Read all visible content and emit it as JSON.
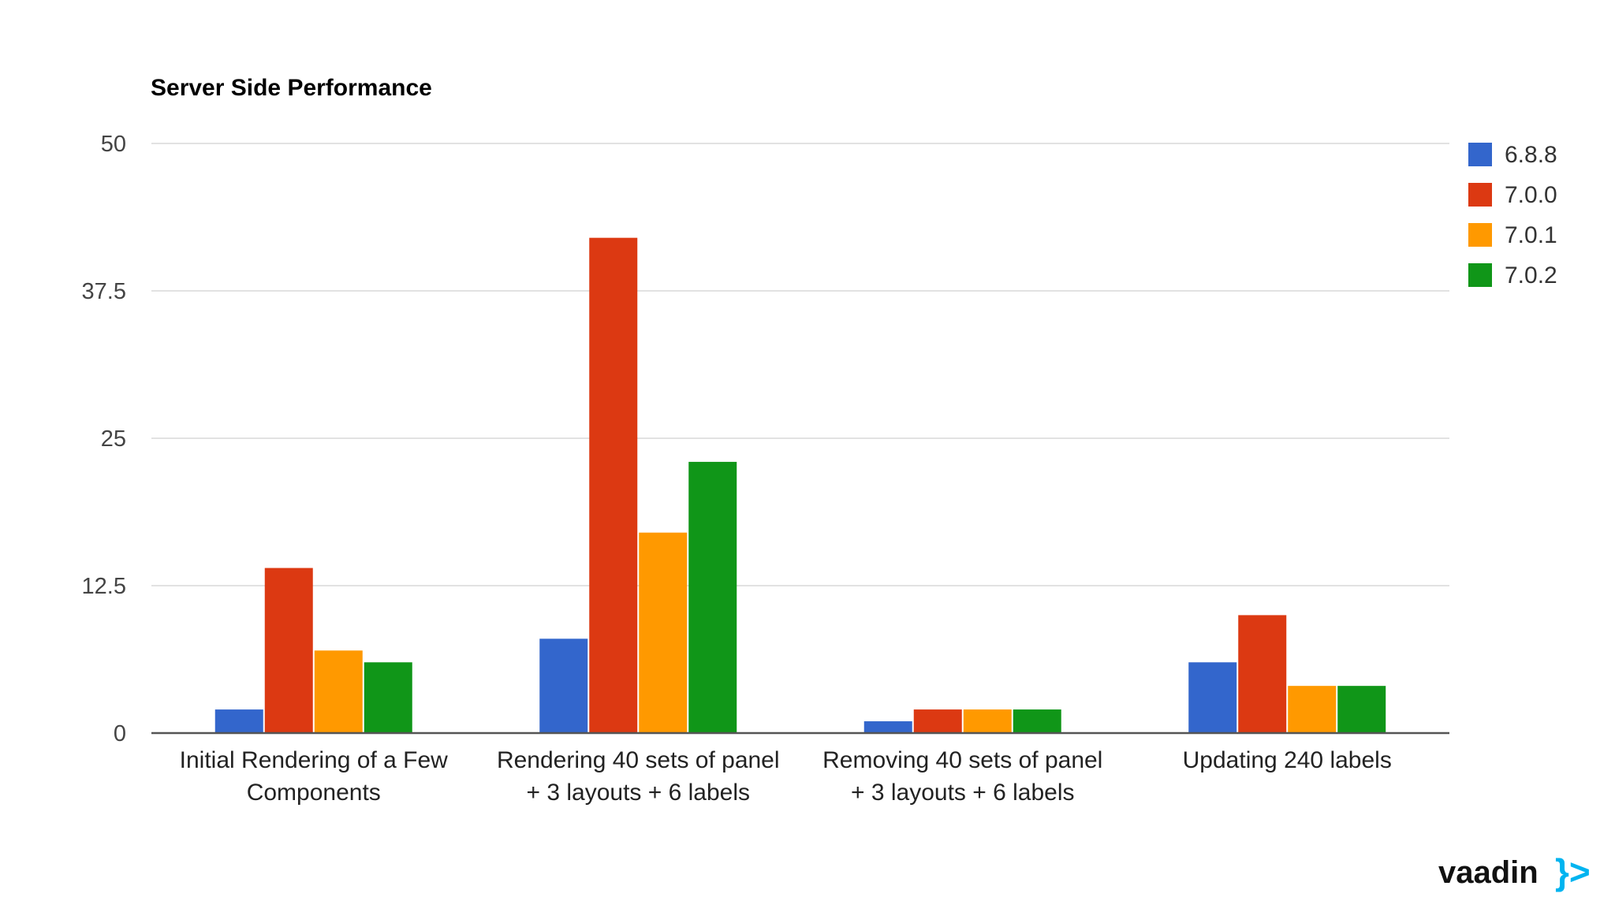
{
  "colors": {
    "background": "#ffffff",
    "grid": "#d8d8d8",
    "axis": "#555555",
    "tick_text": "#444444",
    "label_text": "#222222",
    "title_text": "#000000",
    "brand_text": "#111111",
    "brand_accent": "#00b4f0"
  },
  "brand": {
    "wordmark": "vaadin",
    "mark": "}>"
  },
  "chart_data": {
    "type": "bar",
    "title": "Server Side Performance",
    "xlabel": "",
    "ylabel": "",
    "ylim": [
      0,
      50
    ],
    "yticks": [
      "0",
      "12.5",
      "25",
      "37.5",
      "50"
    ],
    "grid": true,
    "legend_position": "right",
    "categories": [
      [
        "Initial Rendering of a Few",
        "Components"
      ],
      [
        "Rendering 40 sets of panel",
        "+ 3 layouts + 6 labels"
      ],
      [
        "Removing 40 sets of panel",
        "+ 3 layouts + 6 labels"
      ],
      [
        "Updating 240 labels"
      ]
    ],
    "series": [
      {
        "name": "6.8.8",
        "color": "#3366cc",
        "values": [
          2,
          8,
          1,
          6
        ]
      },
      {
        "name": "7.0.0",
        "color": "#dc3912",
        "values": [
          14,
          42,
          2,
          10
        ]
      },
      {
        "name": "7.0.1",
        "color": "#ff9900",
        "values": [
          7,
          17,
          2,
          4
        ]
      },
      {
        "name": "7.0.2",
        "color": "#109618",
        "values": [
          6,
          23,
          2,
          4
        ]
      }
    ]
  }
}
